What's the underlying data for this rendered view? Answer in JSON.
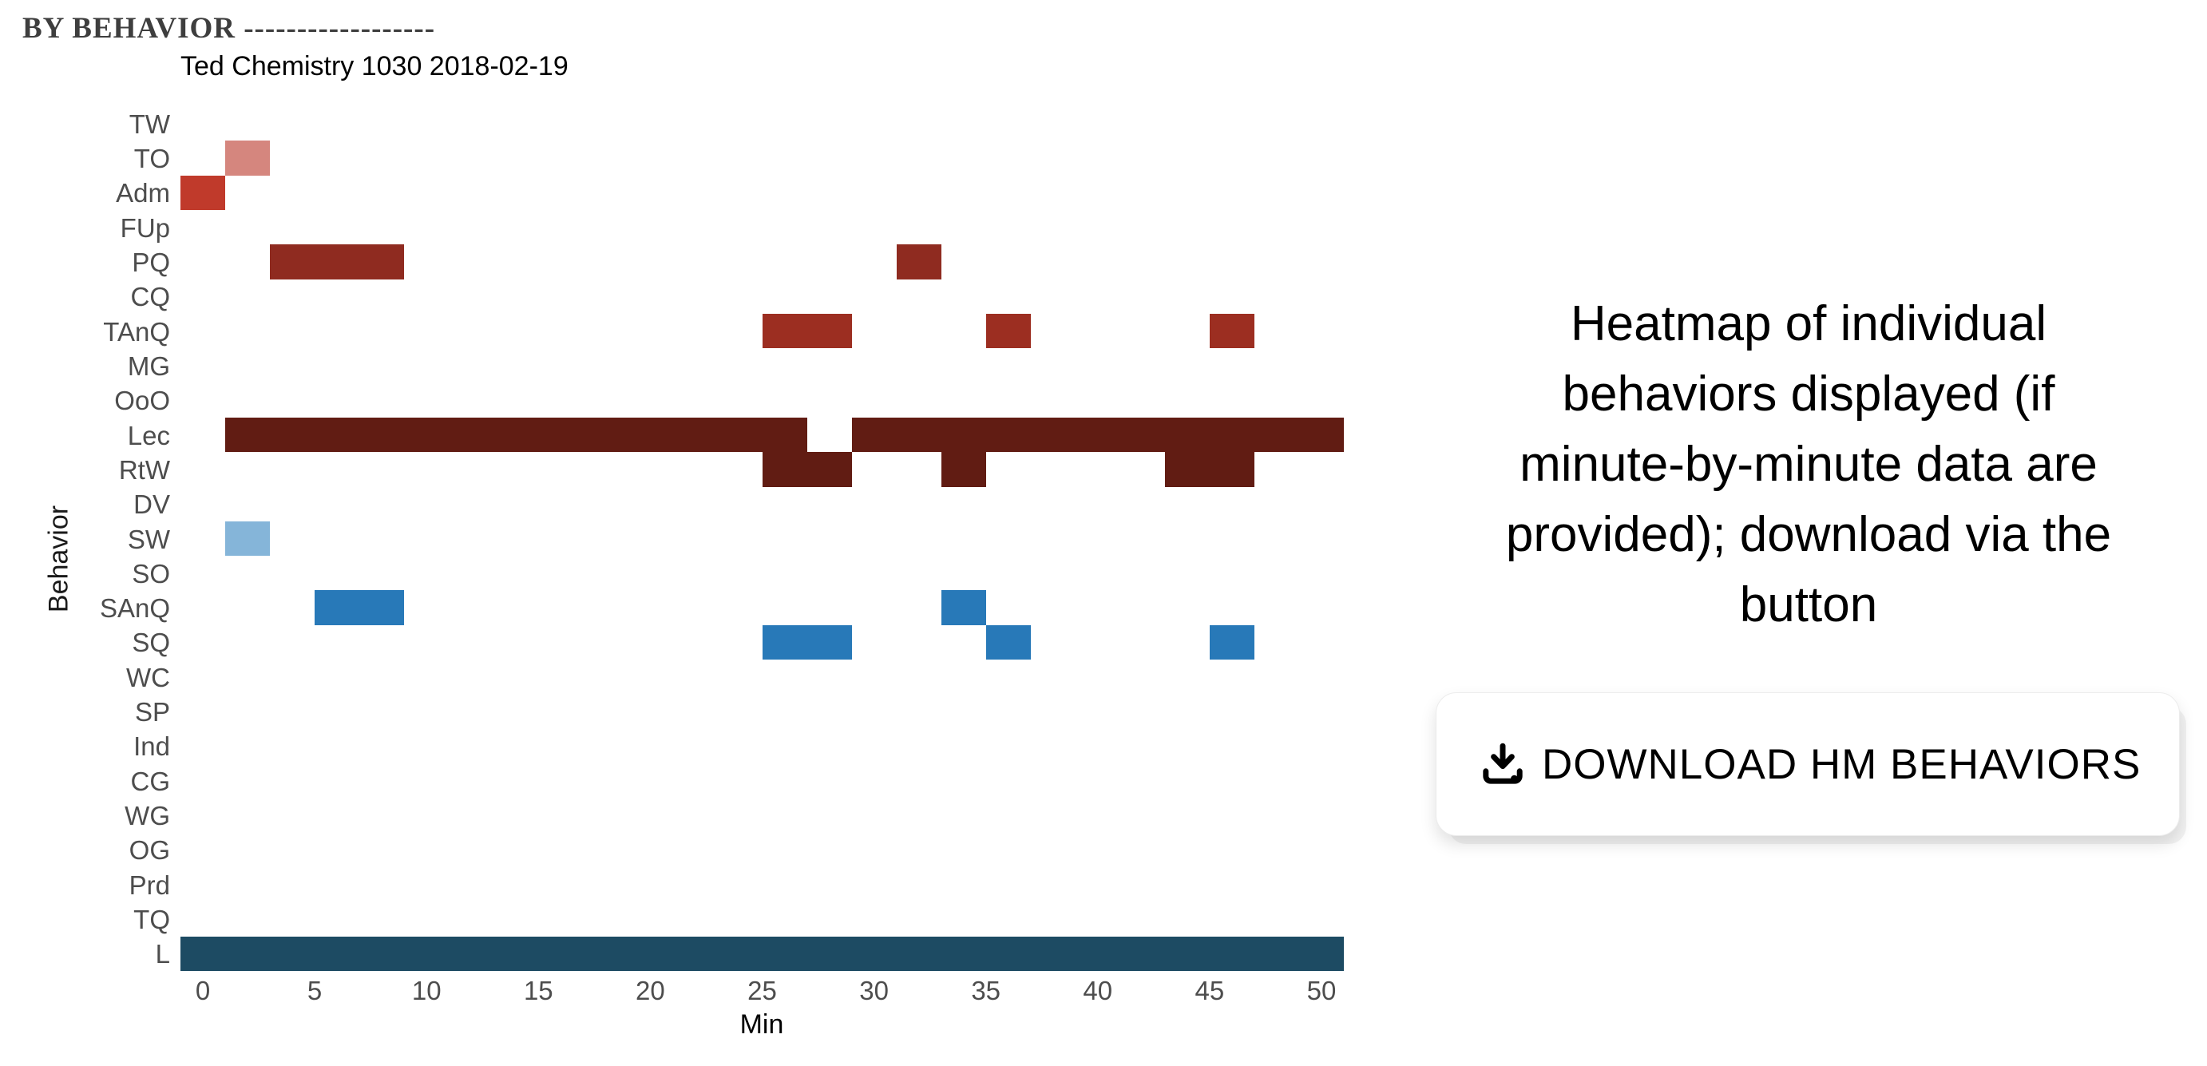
{
  "header": {
    "section_title": "BY BEHAVIOR ------------------"
  },
  "chart_data": {
    "type": "heatmap",
    "title": "Ted Chemistry 1030 2018-02-19",
    "xlabel": "Min",
    "ylabel": "Behavior",
    "x_ticks": [
      0,
      5,
      10,
      15,
      20,
      25,
      30,
      35,
      40,
      45,
      50
    ],
    "x_range_min": [
      -1,
      51
    ],
    "bin_width_min": 2,
    "grid": "off",
    "row_labels": [
      "TW",
      "TO",
      "Adm",
      "FUp",
      "PQ",
      "CQ",
      "TAnQ",
      "MG",
      "OoO",
      "Lec",
      "RtW",
      "DV",
      "SW",
      "SO",
      "SAnQ",
      "SQ",
      "WC",
      "SP",
      "Ind",
      "CG",
      "WG",
      "OG",
      "Prd",
      "TQ",
      "L"
    ],
    "segments": [
      {
        "row": "TO",
        "from_min": 1,
        "to_min": 3,
        "color": "#d5867e"
      },
      {
        "row": "Adm",
        "from_min": -1,
        "to_min": 1,
        "color": "#c03a2b"
      },
      {
        "row": "PQ",
        "from_min": 3,
        "to_min": 9,
        "color": "#8f2b20"
      },
      {
        "row": "PQ",
        "from_min": 31,
        "to_min": 33,
        "color": "#8f2b20"
      },
      {
        "row": "TAnQ",
        "from_min": 25,
        "to_min": 29,
        "color": "#9c2e21"
      },
      {
        "row": "TAnQ",
        "from_min": 35,
        "to_min": 37,
        "color": "#9c2e21"
      },
      {
        "row": "TAnQ",
        "from_min": 45,
        "to_min": 47,
        "color": "#9c2e21"
      },
      {
        "row": "Lec",
        "from_min": 1,
        "to_min": 27,
        "color": "#611c13"
      },
      {
        "row": "Lec",
        "from_min": 29,
        "to_min": 51,
        "color": "#611c13"
      },
      {
        "row": "RtW",
        "from_min": 25,
        "to_min": 29,
        "color": "#611c13"
      },
      {
        "row": "RtW",
        "from_min": 33,
        "to_min": 35,
        "color": "#611c13"
      },
      {
        "row": "RtW",
        "from_min": 43,
        "to_min": 47,
        "color": "#611c13"
      },
      {
        "row": "SW",
        "from_min": 1,
        "to_min": 3,
        "color": "#85b5d9"
      },
      {
        "row": "SAnQ",
        "from_min": 5,
        "to_min": 9,
        "color": "#2879b8"
      },
      {
        "row": "SAnQ",
        "from_min": 33,
        "to_min": 35,
        "color": "#2879b8"
      },
      {
        "row": "SQ",
        "from_min": 25,
        "to_min": 29,
        "color": "#2879b8"
      },
      {
        "row": "SQ",
        "from_min": 35,
        "to_min": 37,
        "color": "#2879b8"
      },
      {
        "row": "SQ",
        "from_min": 45,
        "to_min": 47,
        "color": "#2879b8"
      },
      {
        "row": "L",
        "from_min": -1,
        "to_min": 51,
        "color": "#1d4b63"
      }
    ]
  },
  "annotation": {
    "lines": [
      "Heatmap of individual",
      "behaviors displayed (if",
      "minute-by-minute data are",
      "provided); download via the",
      "button"
    ]
  },
  "download_button": {
    "label": "DOWNLOAD HM BEHAVIORS",
    "icon": "download-icon"
  }
}
